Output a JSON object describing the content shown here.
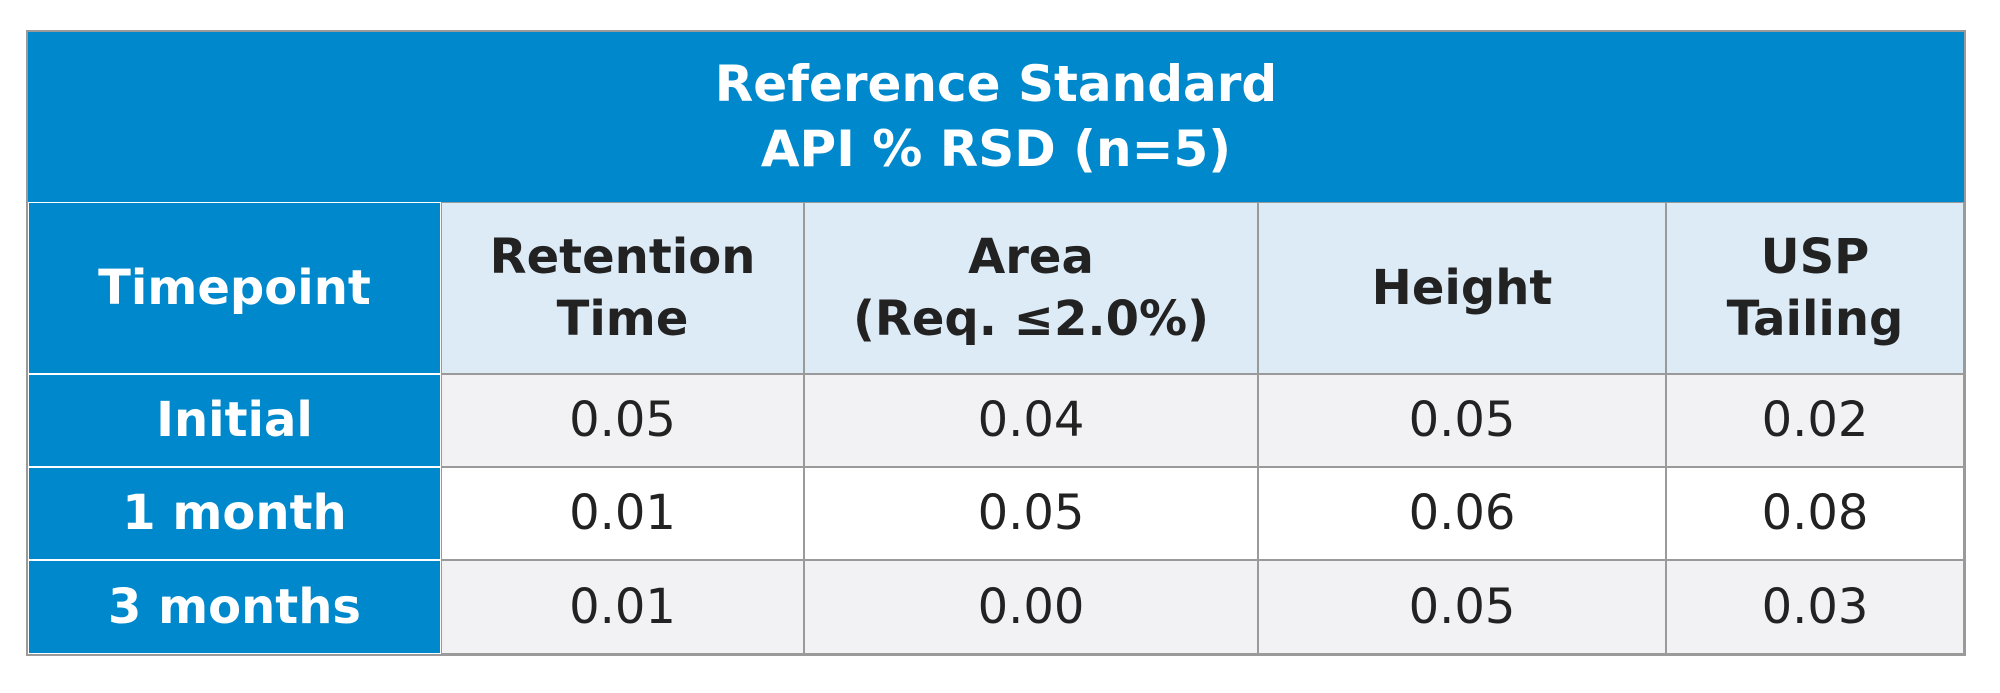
{
  "table": {
    "title": [
      "Reference Standard",
      "API % RSD (n=5)"
    ],
    "header": [
      [
        "Timepoint"
      ],
      [
        "Retention",
        "Time"
      ],
      [
        "Area",
        "(Req. ≤2.0%)"
      ],
      [
        "Height"
      ],
      [
        "USP",
        "Tailing"
      ]
    ],
    "rows": [
      [
        "Initial",
        "0.05",
        "0.04",
        "0.05",
        "0.02"
      ],
      [
        "1 month",
        "0.01",
        "0.05",
        "0.06",
        "0.08"
      ],
      [
        "3 months",
        "0.01",
        "0.00",
        "0.05",
        "0.03"
      ]
    ]
  }
}
